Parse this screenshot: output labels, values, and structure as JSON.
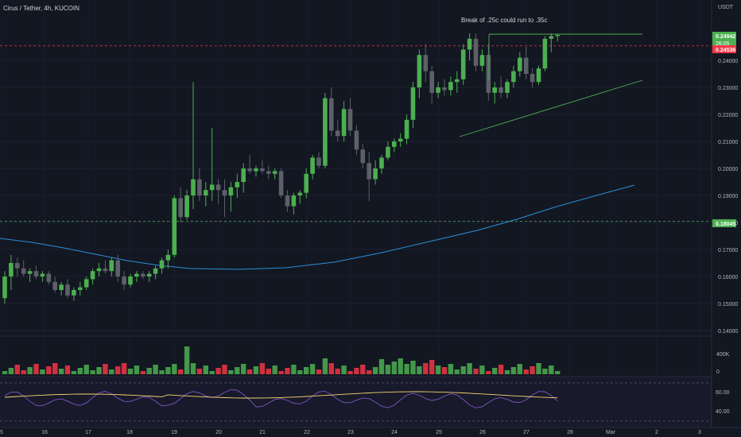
{
  "header": {
    "symbol": "Cirus / Tether, 4h, KUCOIN",
    "currency": "USDT"
  },
  "annotation": "Break of .25c could run to .35c",
  "price_axis": {
    "ticks": [
      "0.14000",
      "0.15000",
      "0.16000",
      "0.17000",
      "0.18000",
      "0.19000",
      "0.20000",
      "0.21000",
      "0.22000",
      "0.23000",
      "0.24000"
    ],
    "tick_values": [
      0.14,
      0.15,
      0.16,
      0.17,
      0.18,
      0.19,
      0.2,
      0.21,
      0.22,
      0.23,
      0.24
    ]
  },
  "price_tags": {
    "last_price": "0.24942",
    "countdown": "26:05",
    "red_level": "0.24536",
    "green_level": "0.18045"
  },
  "volume_axis": {
    "ticks": [
      "400K",
      "0"
    ]
  },
  "rsi_axis": {
    "ticks": [
      "60.00",
      "40.00"
    ]
  },
  "time_axis": {
    "labels": [
      "15",
      "16",
      "17",
      "18",
      "19",
      "20",
      "21",
      "22",
      "23",
      "24",
      "25",
      "26",
      "27",
      "28",
      "Mar",
      "2",
      "3"
    ]
  },
  "colors": {
    "background": "#131722",
    "up": "#4caf50",
    "down": "#f23645",
    "neutral": "#5d6069",
    "moving_average": "#2a8fd9",
    "trendline": "#4caf50",
    "rsi": "#7e57c2",
    "rsi_ma": "#f5d76e"
  },
  "chart_data": {
    "type": "candlestick",
    "timeframe": "4h",
    "x_range": [
      "15",
      "Mar 1"
    ],
    "ylim": [
      0.137,
      0.251
    ],
    "horizontal_levels": [
      0.24536,
      0.18045
    ],
    "trendlines": [
      {
        "from": [
          0,
          0.2133
        ],
        "to": [
          1,
          0.233
        ]
      },
      {
        "from": [
          0,
          0.2496
        ],
        "to": [
          1,
          0.2496
        ]
      }
    ],
    "moving_average_last": 0.194,
    "volume_max": "400K",
    "rsi_levels": [
      60,
      40
    ]
  }
}
